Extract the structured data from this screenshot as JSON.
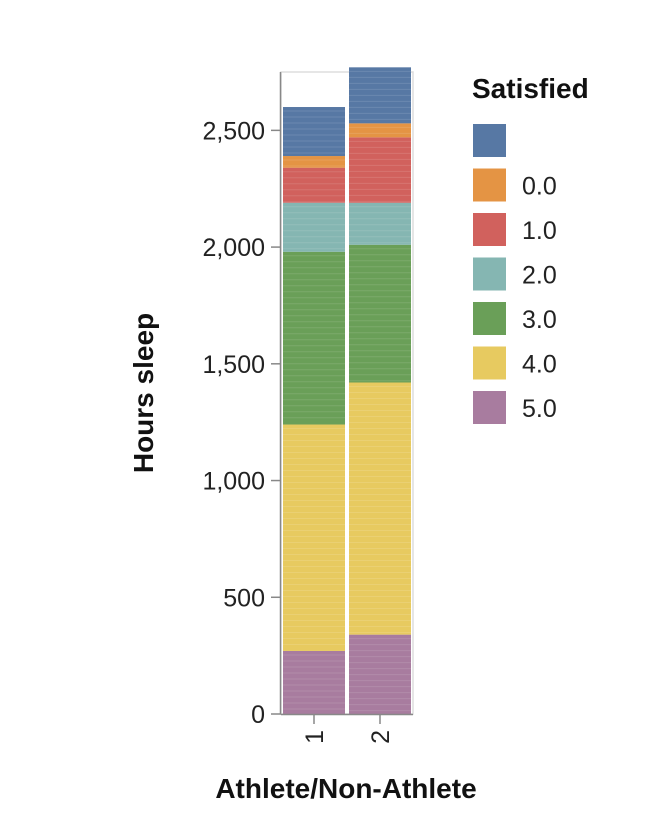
{
  "chart_data": {
    "type": "bar",
    "stacked": true,
    "xlabel": "Athlete/Non-Athlete",
    "ylabel": "Hours sleep",
    "categories": [
      "1",
      "2"
    ],
    "ylim": [
      0,
      2750
    ],
    "yticks": [
      0,
      500,
      1000,
      1500,
      2000,
      2500
    ],
    "ytick_labels": [
      "0",
      "500",
      "1,000",
      "1,500",
      "2,000",
      "2,500"
    ],
    "grid": false,
    "legend": {
      "title": "Satisfied",
      "position": "right",
      "entries": [
        {
          "label": "",
          "color": "#5778a4"
        },
        {
          "label": "0.0",
          "color": "#e49444"
        },
        {
          "label": "1.0",
          "color": "#d1615d"
        },
        {
          "label": "2.0",
          "color": "#85b6b2"
        },
        {
          "label": "3.0",
          "color": "#6a9f58"
        },
        {
          "label": "4.0",
          "color": "#e7ca60"
        },
        {
          "label": "5.0",
          "color": "#a87c9f"
        }
      ]
    },
    "stack_order": [
      "5.0",
      "4.0",
      "3.0",
      "2.0",
      "1.0",
      "0.0",
      ""
    ],
    "series": [
      {
        "name": "",
        "color": "#5778a4",
        "values": [
          210,
          240
        ]
      },
      {
        "name": "0.0",
        "color": "#e49444",
        "values": [
          50,
          60
        ]
      },
      {
        "name": "1.0",
        "color": "#d1615d",
        "values": [
          150,
          280
        ]
      },
      {
        "name": "2.0",
        "color": "#85b6b2",
        "values": [
          210,
          180
        ]
      },
      {
        "name": "3.0",
        "color": "#6a9f58",
        "values": [
          740,
          590
        ]
      },
      {
        "name": "4.0",
        "color": "#e7ca60",
        "values": [
          970,
          1080
        ]
      },
      {
        "name": "5.0",
        "color": "#a87c9f",
        "values": [
          270,
          340
        ]
      }
    ]
  }
}
